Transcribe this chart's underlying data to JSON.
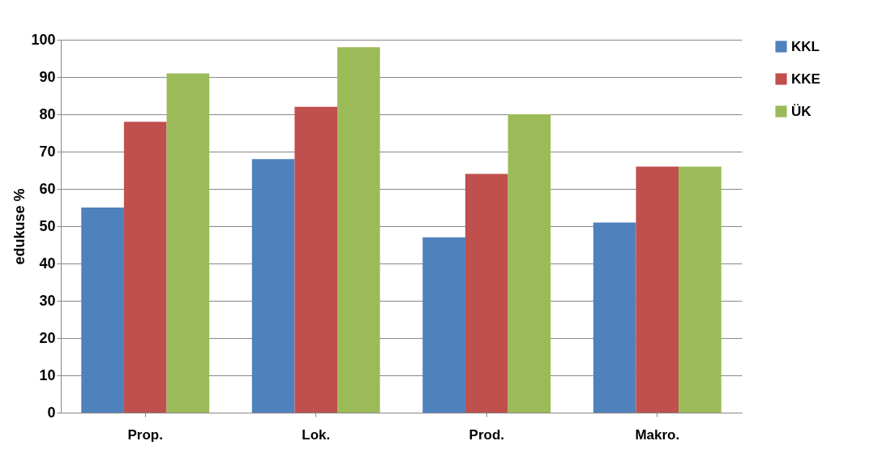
{
  "chart_data": {
    "type": "bar",
    "ylabel": "edukuse %",
    "categories": [
      "Prop.",
      "Lok.",
      "Prod.",
      "Makro."
    ],
    "series": [
      {
        "name": "KKL",
        "color": "#4f81bd",
        "values": [
          55,
          68,
          47,
          51
        ]
      },
      {
        "name": "KKE",
        "color": "#c0504d",
        "values": [
          78,
          82,
          64,
          66
        ]
      },
      {
        "name": "ÜK",
        "color": "#9bbb59",
        "values": [
          91,
          98,
          80,
          66
        ]
      }
    ],
    "ylim": [
      0,
      100
    ],
    "yticks": [
      0,
      10,
      20,
      30,
      40,
      50,
      60,
      70,
      80,
      90,
      100
    ],
    "grid": "y",
    "legend": "right"
  }
}
